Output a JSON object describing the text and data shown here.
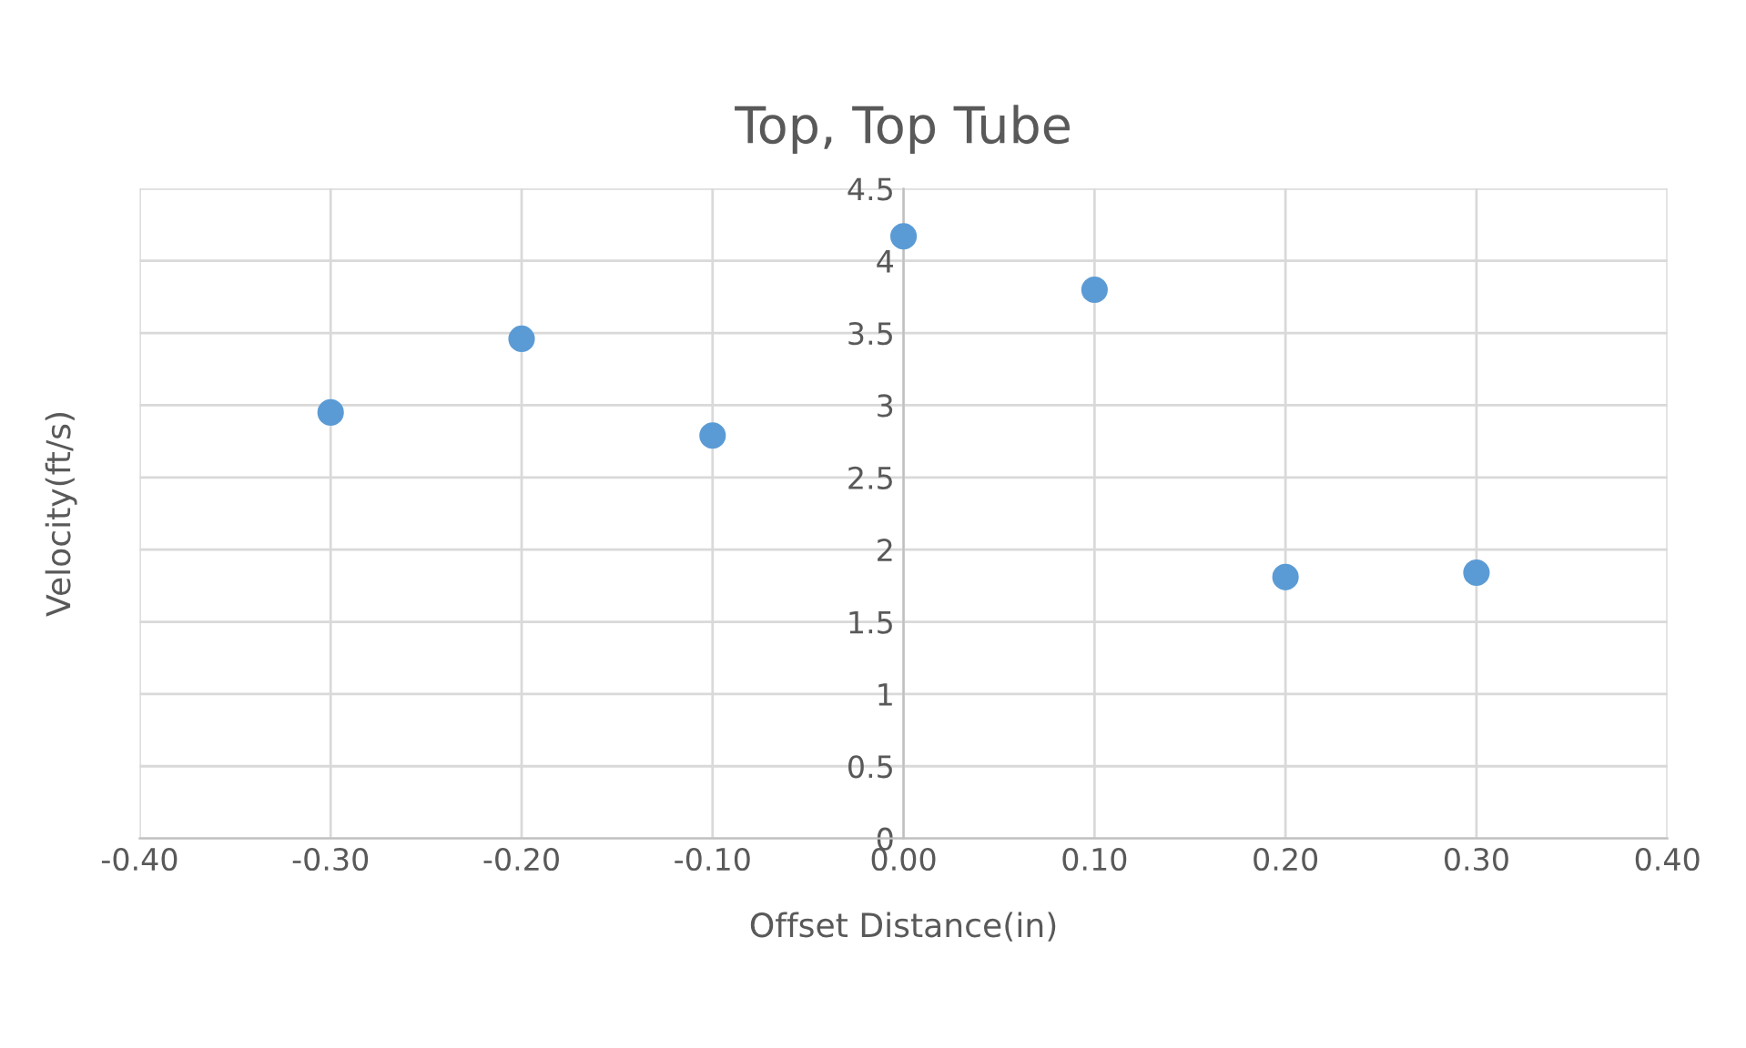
{
  "chart_data": {
    "type": "scatter",
    "title": "Top, Top Tube",
    "xlabel": "Offset Distance(in)",
    "ylabel": "Velocity(ft/s)",
    "x": [
      -0.3,
      -0.2,
      -0.1,
      0,
      0.1,
      0.2,
      0.3
    ],
    "series": [
      {
        "color": "#5b9bd5",
        "values": [
          2.95,
          3.46,
          2.79,
          4.17,
          3.8,
          1.81,
          1.84
        ]
      }
    ],
    "xlim": [
      -0.4,
      0.4
    ],
    "xticks": [
      {
        "value": -0.4,
        "label": "-0.40"
      },
      {
        "value": -0.3,
        "label": "-0.30"
      },
      {
        "value": -0.2,
        "label": "-0.20"
      },
      {
        "value": -0.1,
        "label": "-0.10"
      },
      {
        "value": 0,
        "label": "0.00"
      },
      {
        "value": 0.1,
        "label": "0.10"
      },
      {
        "value": 0.2,
        "label": "0.20"
      },
      {
        "value": 0.3,
        "label": "0.30"
      },
      {
        "value": 0.4,
        "label": "0.40"
      }
    ],
    "ylim": [
      0,
      4.5
    ],
    "yticks": [
      0,
      0.5,
      1,
      1.5,
      2,
      2.5,
      3,
      3.5,
      4,
      4.5
    ],
    "grid": true,
    "marker": "circle",
    "legend": false
  }
}
